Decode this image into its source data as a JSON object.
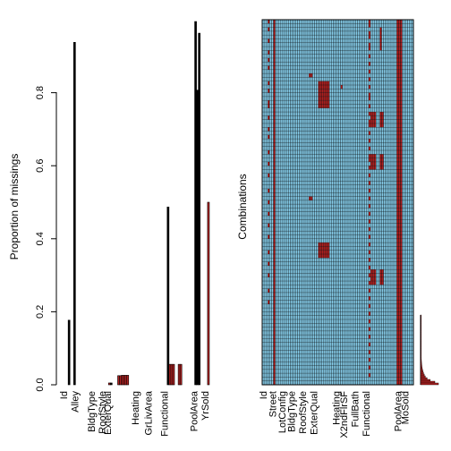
{
  "chart_data": [
    {
      "type": "bar",
      "title": "",
      "xlabel": "",
      "ylabel": "Proportion of missings",
      "ylim": [
        0,
        1
      ],
      "yticks": [
        0.0,
        0.2,
        0.4,
        0.6,
        0.8
      ],
      "ytick_labels": [
        "0.0",
        "0.2",
        "0.4",
        "0.6",
        "0.8"
      ],
      "variable_count": 81,
      "colors": {
        "bar": "#000000",
        "highlight": "#b22222",
        "axis": "#000000"
      },
      "x_tick_labels": [
        {
          "index": 0,
          "label": "Id"
        },
        {
          "index": 6,
          "label": "Alley"
        },
        {
          "index": 15,
          "label": "BldgType"
        },
        {
          "index": 21,
          "label": "RoofStyle"
        },
        {
          "index": 24,
          "label": "ExterQual"
        },
        {
          "index": 39,
          "label": "Heating"
        },
        {
          "index": 46,
          "label": "GrLivArea"
        },
        {
          "index": 55,
          "label": "Functional"
        },
        {
          "index": 71,
          "label": "PoolArea"
        },
        {
          "index": 77,
          "label": "YrSold"
        }
      ],
      "bars": [
        {
          "index": 3,
          "value": 0.177,
          "color": "#000000"
        },
        {
          "index": 6,
          "value": 0.938,
          "color": "#000000"
        },
        {
          "index": 25,
          "value": 0.005,
          "color": "#b22222"
        },
        {
          "index": 26,
          "value": 0.005,
          "color": "#000000"
        },
        {
          "index": 30,
          "value": 0.025,
          "color": "#b22222"
        },
        {
          "index": 31,
          "value": 0.025,
          "color": "#b22222"
        },
        {
          "index": 32,
          "value": 0.026,
          "color": "#b22222"
        },
        {
          "index": 33,
          "value": 0.026,
          "color": "#b22222"
        },
        {
          "index": 34,
          "value": 0.026,
          "color": "#b22222"
        },
        {
          "index": 35,
          "value": 0.026,
          "color": "#b22222"
        },
        {
          "index": 57,
          "value": 0.487,
          "color": "#000000"
        },
        {
          "index": 58,
          "value": 0.056,
          "color": "#b22222"
        },
        {
          "index": 59,
          "value": 0.056,
          "color": "#b22222"
        },
        {
          "index": 60,
          "value": 0.056,
          "color": "#b22222"
        },
        {
          "index": 63,
          "value": 0.056,
          "color": "#b22222"
        },
        {
          "index": 64,
          "value": 0.056,
          "color": "#b22222"
        },
        {
          "index": 72,
          "value": 0.995,
          "color": "#000000"
        },
        {
          "index": 73,
          "value": 0.807,
          "color": "#000000"
        },
        {
          "index": 74,
          "value": 0.963,
          "color": "#000000"
        },
        {
          "index": 79,
          "value": 0.5,
          "color": "#b22222"
        }
      ]
    },
    {
      "type": "heatmap",
      "title": "",
      "xlabel": "",
      "ylabel": "Combinations",
      "variable_count": 81,
      "combination_rows": 95,
      "colors": {
        "observed": "#87ceeb",
        "missing": "#b22222",
        "grid": "#000000"
      },
      "x_tick_labels": [
        {
          "index": 0,
          "label": "Id"
        },
        {
          "index": 5,
          "label": "Street"
        },
        {
          "index": 10,
          "label": "LotConfig"
        },
        {
          "index": 15,
          "label": "BldgType"
        },
        {
          "index": 21,
          "label": "RoofStyle"
        },
        {
          "index": 27,
          "label": "ExterQual"
        },
        {
          "index": 39,
          "label": "Heating"
        },
        {
          "index": 43,
          "label": "X2ndFlrSF"
        },
        {
          "index": 49,
          "label": "FullBath"
        },
        {
          "index": 55,
          "label": "Functional"
        },
        {
          "index": 72,
          "label": "PoolArea"
        },
        {
          "index": 76,
          "label": "MoSold"
        }
      ],
      "missing_columns": [
        {
          "index": 3,
          "rows": [
            0,
            2,
            5,
            8,
            10,
            12,
            16,
            18,
            21,
            22,
            25,
            28,
            30,
            34,
            37,
            40,
            44,
            47,
            50,
            53,
            56,
            60,
            63,
            66,
            70,
            73
          ]
        },
        {
          "index": 6,
          "rows": [
            0,
            1,
            2,
            3,
            4,
            5,
            6,
            7,
            8,
            9,
            10,
            11,
            12,
            13,
            14,
            15,
            16,
            17,
            18,
            19,
            20,
            21,
            22,
            23,
            24,
            25,
            26,
            27,
            28,
            29,
            30,
            31,
            32,
            33,
            34,
            35,
            36,
            37,
            38,
            39,
            40,
            41,
            42,
            43,
            44,
            45,
            46,
            47,
            48,
            49,
            50,
            51,
            52,
            53,
            54,
            55,
            56,
            57,
            58,
            59,
            60,
            61,
            62,
            63,
            64,
            65,
            66,
            67,
            68,
            69,
            70,
            71,
            72,
            73,
            74,
            75,
            76,
            77,
            78,
            79,
            80,
            81,
            82,
            83,
            84,
            85,
            86,
            87,
            88,
            89,
            90,
            91,
            92,
            93,
            94
          ]
        },
        {
          "index": 25,
          "rows": [
            14,
            46
          ]
        },
        {
          "index": 26,
          "rows": [
            14,
            46
          ]
        },
        {
          "index": 30,
          "rows": [
            16,
            17,
            18,
            19,
            20,
            21,
            22,
            58,
            59,
            60,
            61
          ]
        },
        {
          "index": 31,
          "rows": [
            16,
            17,
            18,
            19,
            20,
            21,
            22,
            58,
            59,
            60,
            61
          ]
        },
        {
          "index": 32,
          "rows": [
            16,
            17,
            18,
            19,
            20,
            21,
            22,
            58,
            59,
            60,
            61
          ]
        },
        {
          "index": 33,
          "rows": [
            16,
            17,
            18,
            19,
            20,
            21,
            22,
            58,
            59,
            60,
            61
          ]
        },
        {
          "index": 34,
          "rows": [
            16,
            17,
            18,
            19,
            20,
            21,
            22,
            58,
            59,
            60,
            61
          ]
        },
        {
          "index": 35,
          "rows": [
            16,
            17,
            18,
            19,
            20,
            21,
            22,
            58,
            59,
            60,
            61
          ]
        },
        {
          "index": 42,
          "rows": [
            17
          ]
        },
        {
          "index": 57,
          "rows": [
            0,
            1,
            3,
            4,
            6,
            7,
            9,
            11,
            13,
            15,
            17,
            19,
            20,
            22,
            24,
            26,
            27,
            29,
            31,
            33,
            35,
            36,
            38,
            40,
            42,
            44,
            46,
            48,
            50,
            52,
            54,
            56,
            58,
            60,
            62,
            64,
            66,
            68,
            70,
            72,
            74,
            76,
            78,
            80,
            82,
            84,
            86,
            88,
            90,
            92
          ]
        },
        {
          "index": 58,
          "rows": [
            24,
            25,
            26,
            27,
            35,
            36,
            37,
            38,
            65,
            66,
            67,
            68
          ]
        },
        {
          "index": 59,
          "rows": [
            24,
            25,
            26,
            27,
            35,
            36,
            37,
            38,
            65,
            66,
            67,
            68
          ]
        },
        {
          "index": 60,
          "rows": [
            24,
            25,
            26,
            27,
            35,
            36,
            37,
            38,
            65,
            66,
            67,
            68
          ]
        },
        {
          "index": 63,
          "rows": [
            2,
            3,
            4,
            5,
            6,
            7,
            24,
            25,
            26,
            27,
            35,
            36,
            37,
            38,
            65,
            66,
            67,
            68
          ]
        },
        {
          "index": 64,
          "rows": [
            24,
            25,
            26,
            27,
            35,
            36,
            37,
            38,
            65,
            66,
            67,
            68
          ]
        },
        {
          "index": 72,
          "rows": [
            0,
            1,
            2,
            3,
            4,
            5,
            6,
            7,
            8,
            9,
            10,
            11,
            12,
            13,
            14,
            15,
            16,
            17,
            18,
            19,
            20,
            21,
            22,
            23,
            24,
            25,
            26,
            27,
            28,
            29,
            30,
            31,
            32,
            33,
            34,
            35,
            36,
            37,
            38,
            39,
            40,
            41,
            42,
            43,
            44,
            45,
            46,
            47,
            48,
            49,
            50,
            51,
            52,
            53,
            54,
            55,
            56,
            57,
            58,
            59,
            60,
            61,
            62,
            63,
            64,
            65,
            66,
            67,
            68,
            69,
            70,
            71,
            72,
            73,
            74,
            75,
            76,
            77,
            78,
            79,
            80,
            81,
            82,
            83,
            84,
            85,
            86,
            87,
            88,
            89,
            90,
            91,
            92,
            93,
            94
          ]
        },
        {
          "index": 73,
          "rows": [
            0,
            1,
            2,
            3,
            4,
            5,
            6,
            7,
            8,
            9,
            10,
            11,
            12,
            13,
            14,
            15,
            16,
            17,
            18,
            19,
            20,
            21,
            22,
            23,
            24,
            25,
            26,
            27,
            28,
            29,
            30,
            31,
            32,
            33,
            34,
            35,
            36,
            37,
            38,
            39,
            40,
            41,
            42,
            43,
            44,
            45,
            46,
            47,
            48,
            49,
            50,
            51,
            52,
            53,
            54,
            55,
            56,
            57,
            58,
            59,
            60,
            61,
            62,
            63,
            64,
            65,
            66,
            67,
            68,
            69,
            70,
            71,
            72,
            73,
            74,
            75,
            76,
            77,
            78,
            79,
            80,
            81,
            82,
            83,
            84,
            85,
            86,
            87,
            88,
            89,
            90,
            91,
            92,
            93,
            94
          ]
        },
        {
          "index": 74,
          "rows": [
            0,
            1,
            2,
            3,
            4,
            5,
            6,
            7,
            8,
            9,
            10,
            11,
            12,
            13,
            14,
            15,
            16,
            17,
            18,
            19,
            20,
            21,
            22,
            23,
            24,
            25,
            26,
            27,
            28,
            29,
            30,
            31,
            32,
            33,
            34,
            35,
            36,
            37,
            38,
            39,
            40,
            41,
            42,
            43,
            44,
            45,
            46,
            47,
            48,
            49,
            50,
            51,
            52,
            53,
            54,
            55,
            56,
            57,
            58,
            59,
            60,
            61,
            62,
            63,
            64,
            65,
            66,
            67,
            68,
            69,
            70,
            71,
            72,
            73,
            74,
            75,
            76,
            77,
            78,
            79,
            80,
            81,
            82,
            83,
            84,
            85,
            86,
            87,
            88,
            89,
            90,
            91,
            92,
            93,
            94
          ]
        }
      ],
      "combination_frequencies": [
        0.0005,
        0.0005,
        0.0006,
        0.0006,
        0.0007,
        0.0008,
        0.0009,
        0.001,
        0.0011,
        0.0012,
        0.0013,
        0.0014,
        0.0016,
        0.0018,
        0.002,
        0.0022,
        0.0025,
        0.0028,
        0.0032,
        0.0036,
        0.004,
        0.0045,
        0.005,
        0.0056,
        0.0063,
        0.0071,
        0.008,
        0.009,
        0.011,
        0.013,
        0.016,
        0.02,
        0.025,
        0.031,
        0.04,
        0.055,
        0.08,
        0.12,
        0.15
      ]
    }
  ]
}
